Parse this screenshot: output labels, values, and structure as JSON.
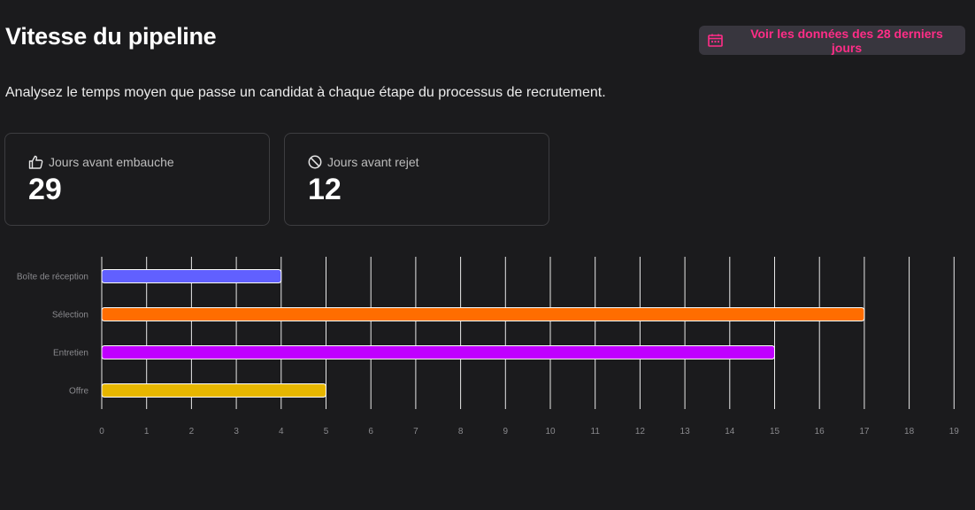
{
  "header": {
    "title": "Vitesse du pipeline",
    "range_label": "Voir les données des 28 derniers jours",
    "range_icon": "calendar-icon",
    "accent_color": "#ff2d87"
  },
  "description": "Analysez le temps moyen que passe un candidat à chaque étape du processus de recrutement.",
  "stats": {
    "hire": {
      "label": "Jours avant embauche",
      "value": "29",
      "icon": "thumbs-up-icon"
    },
    "reject": {
      "label": "Jours avant rejet",
      "value": "12",
      "icon": "prohibited-icon"
    }
  },
  "chart_data": {
    "type": "bar",
    "orientation": "horizontal",
    "categories": [
      "Boîte de réception",
      "Sélection",
      "Entretien",
      "Offre"
    ],
    "values": [
      4,
      17,
      15,
      5
    ],
    "colors": [
      "#6160ff",
      "#ff6d00",
      "#c000ff",
      "#e6b600"
    ],
    "xlim": [
      0,
      19
    ],
    "xticks": [
      0,
      1,
      2,
      3,
      4,
      5,
      6,
      7,
      8,
      9,
      10,
      11,
      12,
      13,
      14,
      15,
      16,
      17,
      18,
      19
    ],
    "grid": true,
    "legend": "none"
  }
}
